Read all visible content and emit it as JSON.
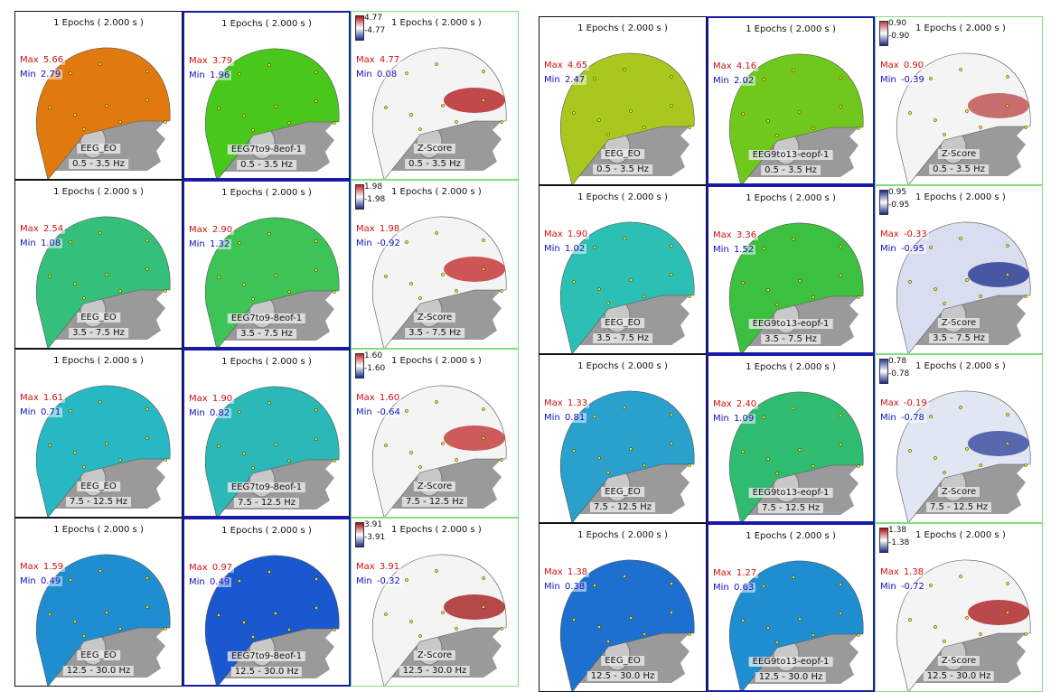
{
  "colors": {
    "max_text": "#d01010",
    "min_text": "#1010c0",
    "border_green": "#7ce07c",
    "border_blue": "#1a1aa8",
    "border_black": "#111111"
  },
  "panels": [
    {
      "id": "left",
      "columns": [
        {
          "name": "EEG_EO",
          "frame": "black",
          "z": false
        },
        {
          "name": "EEG7to9-8eof-1",
          "frame": "blue",
          "z": false
        },
        {
          "name": "Z-Score",
          "frame": "green",
          "z": true
        }
      ],
      "rows": [
        {
          "band": "0.5 - 3.5 Hz",
          "cells": [
            {
              "title": "1 Epochs ( 2.000 s )",
              "max_label": "Max",
              "max": "5.66",
              "min_label": "Min",
              "min": "2.79",
              "color": "#e07a10"
            },
            {
              "title": "1 Epochs ( 2.000 s )",
              "max_label": "Max",
              "max": "3.79",
              "min_label": "Min",
              "min": "1.96",
              "color": "#48c81a"
            },
            {
              "title": "1 Epochs ( 2.000 s )",
              "max_label": "Max",
              "max": "4.77",
              "min_label": "Min",
              "min": "0.08",
              "scale_top": "4.77",
              "scale_bot": "-4.77",
              "color": "#f4f4f4",
              "blob": "#b01010"
            }
          ]
        },
        {
          "band": "3.5 - 7.5 Hz",
          "cells": [
            {
              "title": "1 Epochs ( 2.000 s )",
              "max_label": "Max",
              "max": "2.54",
              "min_label": "Min",
              "min": "1.08",
              "color": "#34c07a"
            },
            {
              "title": "1 Epochs ( 2.000 s )",
              "max_label": "Max",
              "max": "2.90",
              "min_label": "Min",
              "min": "1.32",
              "color": "#3cc456"
            },
            {
              "title": "1 Epochs ( 2.000 s )",
              "max_label": "Max",
              "max": "1.98",
              "min_label": "Min",
              "min": "-0.92",
              "scale_top": "1.98",
              "scale_bot": "-1.98",
              "color": "#f4f4f4",
              "blob": "#c02020"
            }
          ]
        },
        {
          "band": "7.5 - 12.5 Hz",
          "cells": [
            {
              "title": "1 Epochs ( 2.000 s )",
              "max_label": "Max",
              "max": "1.61",
              "min_label": "Min",
              "min": "0.71",
              "color": "#28b8c4"
            },
            {
              "title": "1 Epochs ( 2.000 s )",
              "max_label": "Max",
              "max": "1.90",
              "min_label": "Min",
              "min": "0.82",
              "color": "#2ab8b8"
            },
            {
              "title": "1 Epochs ( 2.000 s )",
              "max_label": "Max",
              "max": "1.60",
              "min_label": "Min",
              "min": "-0.64",
              "scale_top": "1.60",
              "scale_bot": "-1.60",
              "color": "#f4f4f4",
              "blob": "#c02828"
            }
          ]
        },
        {
          "band": "12.5 - 30.0 Hz",
          "cells": [
            {
              "title": "1 Epochs ( 2.000 s )",
              "max_label": "Max",
              "max": "1.59",
              "min_label": "Min",
              "min": "0.49",
              "color": "#1e8ed0"
            },
            {
              "title": "1 Epochs ( 2.000 s )",
              "max_label": "Max",
              "max": "0.97",
              "min_label": "Min",
              "min": "0.49",
              "color": "#1a58d0"
            },
            {
              "title": "1 Epochs ( 2.000 s )",
              "max_label": "Max",
              "max": "3.91",
              "min_label": "Min",
              "min": "-0.32",
              "scale_top": "3.91",
              "scale_bot": "-3.91",
              "color": "#f4f4f4",
              "blob": "#a01010"
            }
          ]
        }
      ]
    },
    {
      "id": "right",
      "columns": [
        {
          "name": "EEG_EO",
          "frame": "black",
          "z": false
        },
        {
          "name": "EEG9to13-eopf-1",
          "frame": "blue",
          "z": false
        },
        {
          "name": "Z-Score",
          "frame": "green",
          "z": true
        }
      ],
      "rows": [
        {
          "band": "0.5 - 3.5 Hz",
          "cells": [
            {
              "title": "1 Epochs ( 2.000 s )",
              "max_label": "Max",
              "max": "4.65",
              "min_label": "Min",
              "min": "2.47",
              "color": "#a8c820"
            },
            {
              "title": "1 Epochs ( 2.000 s )",
              "max_label": "Max",
              "max": "4.16",
              "min_label": "Min",
              "min": "2.02",
              "color": "#70c81c"
            },
            {
              "title": "1 Epochs ( 2.000 s )",
              "max_label": "Max",
              "max": "0.90",
              "min_label": "Min",
              "min": "-0.39",
              "scale_top": "0.90",
              "scale_bot": "-0.90",
              "color": "#f4f4f4",
              "blob": "#b84040"
            }
          ]
        },
        {
          "band": "3.5 - 7.5 Hz",
          "cells": [
            {
              "title": "1 Epochs ( 2.000 s )",
              "max_label": "Max",
              "max": "1.90",
              "min_label": "Min",
              "min": "1.02",
              "color": "#2cc0b4"
            },
            {
              "title": "1 Epochs ( 2.000 s )",
              "max_label": "Max",
              "max": "3.36",
              "min_label": "Min",
              "min": "1.52",
              "color": "#3cc040"
            },
            {
              "title": "1 Epochs ( 2.000 s )",
              "max_label": "Max",
              "max": "-0.33",
              "min_label": "Min",
              "min": "-0.95",
              "scale_top": "0.95",
              "scale_bot": "-0.95",
              "color": "#d8def0",
              "blob": "#1a2a8a"
            }
          ]
        },
        {
          "band": "7.5 - 12.5 Hz",
          "cells": [
            {
              "title": "1 Epochs ( 2.000 s )",
              "max_label": "Max",
              "max": "1.33",
              "min_label": "Min",
              "min": "0.81",
              "color": "#2aa0cc"
            },
            {
              "title": "1 Epochs ( 2.000 s )",
              "max_label": "Max",
              "max": "2.40",
              "min_label": "Min",
              "min": "1.09",
              "color": "#30bc70"
            },
            {
              "title": "1 Epochs ( 2.000 s )",
              "max_label": "Max",
              "max": "-0.19",
              "min_label": "Min",
              "min": "-0.78",
              "scale_top": "0.78",
              "scale_bot": "-0.78",
              "color": "#e0e6f2",
              "blob": "#2a3e98"
            }
          ]
        },
        {
          "band": "12.5 - 30.0 Hz",
          "cells": [
            {
              "title": "1 Epochs ( 2.000 s )",
              "max_label": "Max",
              "max": "1.38",
              "min_label": "Min",
              "min": "0.38",
              "color": "#1e70d0"
            },
            {
              "title": "1 Epochs ( 2.000 s )",
              "max_label": "Max",
              "max": "1.27",
              "min_label": "Min",
              "min": "0.63",
              "color": "#1e8ed0"
            },
            {
              "title": "1 Epochs ( 2.000 s )",
              "max_label": "Max",
              "max": "1.38",
              "min_label": "Min",
              "min": "-0.72",
              "scale_top": "1.38",
              "scale_bot": "-1.38",
              "color": "#f4f4f4",
              "blob": "#a81010"
            }
          ]
        }
      ]
    }
  ]
}
